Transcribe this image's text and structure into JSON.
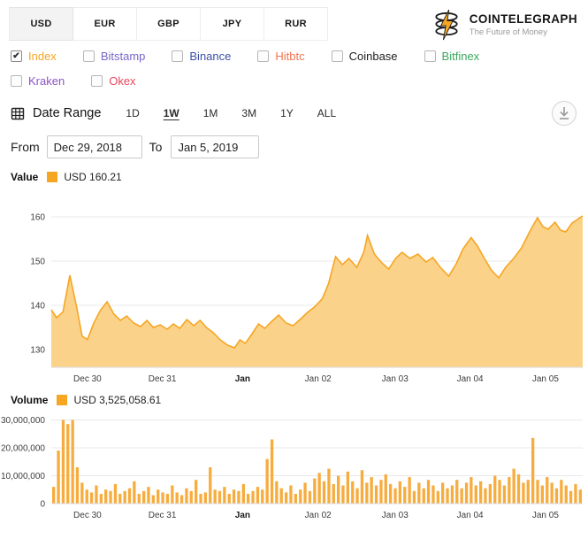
{
  "currency_tabs": [
    {
      "label": "USD",
      "active": true
    },
    {
      "label": "EUR",
      "active": false
    },
    {
      "label": "GBP",
      "active": false
    },
    {
      "label": "JPY",
      "active": false
    },
    {
      "label": "RUR",
      "active": false
    }
  ],
  "logo": {
    "title": "COINTELEGRAPH",
    "tagline": "The Future of Money"
  },
  "exchanges": {
    "rows": [
      [
        {
          "label": "Index",
          "checked": true,
          "color": "#f5a623"
        },
        {
          "label": "Bitstamp",
          "checked": false,
          "color": "#7a65c9"
        },
        {
          "label": "Binance",
          "checked": false,
          "color": "#3c4fa5"
        },
        {
          "label": "Hitbtc",
          "checked": false,
          "color": "#ee7551"
        },
        {
          "label": "Coinbase",
          "checked": false,
          "color": "#1e1e1e"
        },
        {
          "label": "Bitfinex",
          "checked": false,
          "color": "#3aa85e"
        }
      ],
      [
        {
          "label": "Kraken",
          "checked": false,
          "color": "#8e52c9"
        },
        {
          "label": "Okex",
          "checked": false,
          "color": "#e8485c"
        }
      ]
    ]
  },
  "date_range": {
    "label": "Date Range",
    "presets": [
      {
        "label": "1D",
        "active": false
      },
      {
        "label": "1W",
        "active": true
      },
      {
        "label": "1M",
        "active": false
      },
      {
        "label": "3M",
        "active": false
      },
      {
        "label": "1Y",
        "active": false
      },
      {
        "label": "ALL",
        "active": false
      }
    ],
    "from_label": "From",
    "from_value": "Dec 29, 2018",
    "to_label": "To",
    "to_value": "Jan 5, 2019"
  },
  "icons": {
    "header_logo": "cointelegraph-coin-bolt",
    "date_range": "calendar-icon",
    "download": "download-icon"
  },
  "chart_data": [
    {
      "type": "area",
      "name": "price-index",
      "legend_label": "Value",
      "legend_value": "USD 160.21",
      "swatch_color": "#f5a623",
      "line_color": "#f5a623",
      "fill_color": "#fbd28a",
      "ylim": [
        126,
        166
      ],
      "yticks": [
        {
          "v": 130,
          "label": "130"
        },
        {
          "v": 140,
          "label": "140"
        },
        {
          "v": 150,
          "label": "150"
        },
        {
          "v": 160,
          "label": "160"
        }
      ],
      "xticks": [
        {
          "t": 0.068,
          "label": "Dec 30",
          "bold": false
        },
        {
          "t": 0.209,
          "label": "Dec 31",
          "bold": false
        },
        {
          "t": 0.36,
          "label": "Jan",
          "bold": true
        },
        {
          "t": 0.502,
          "label": "Jan 02",
          "bold": false
        },
        {
          "t": 0.647,
          "label": "Jan 03",
          "bold": false
        },
        {
          "t": 0.788,
          "label": "Jan 04",
          "bold": false
        },
        {
          "t": 0.93,
          "label": "Jan 05",
          "bold": false
        }
      ],
      "points": [
        [
          0.0,
          139.0
        ],
        [
          0.01,
          137.2
        ],
        [
          0.022,
          138.5
        ],
        [
          0.035,
          146.8
        ],
        [
          0.048,
          139.5
        ],
        [
          0.058,
          133.0
        ],
        [
          0.068,
          132.3
        ],
        [
          0.08,
          136.0
        ],
        [
          0.092,
          138.8
        ],
        [
          0.105,
          140.8
        ],
        [
          0.118,
          138.0
        ],
        [
          0.13,
          136.6
        ],
        [
          0.142,
          137.6
        ],
        [
          0.155,
          136.0
        ],
        [
          0.168,
          135.2
        ],
        [
          0.18,
          136.6
        ],
        [
          0.192,
          135.0
        ],
        [
          0.205,
          135.6
        ],
        [
          0.218,
          134.6
        ],
        [
          0.23,
          135.8
        ],
        [
          0.242,
          134.8
        ],
        [
          0.255,
          136.8
        ],
        [
          0.268,
          135.4
        ],
        [
          0.28,
          136.6
        ],
        [
          0.292,
          135.0
        ],
        [
          0.305,
          133.8
        ],
        [
          0.318,
          132.2
        ],
        [
          0.332,
          131.0
        ],
        [
          0.345,
          130.4
        ],
        [
          0.355,
          132.2
        ],
        [
          0.365,
          131.4
        ],
        [
          0.378,
          133.6
        ],
        [
          0.39,
          135.8
        ],
        [
          0.402,
          134.8
        ],
        [
          0.415,
          136.4
        ],
        [
          0.428,
          137.8
        ],
        [
          0.442,
          136.0
        ],
        [
          0.455,
          135.4
        ],
        [
          0.468,
          136.8
        ],
        [
          0.482,
          138.4
        ],
        [
          0.495,
          139.6
        ],
        [
          0.51,
          141.5
        ],
        [
          0.522,
          145.0
        ],
        [
          0.535,
          151.0
        ],
        [
          0.548,
          149.2
        ],
        [
          0.56,
          150.6
        ],
        [
          0.575,
          148.6
        ],
        [
          0.588,
          152.0
        ],
        [
          0.595,
          155.8
        ],
        [
          0.608,
          151.6
        ],
        [
          0.622,
          149.6
        ],
        [
          0.635,
          148.2
        ],
        [
          0.648,
          150.6
        ],
        [
          0.66,
          152.0
        ],
        [
          0.675,
          150.6
        ],
        [
          0.69,
          151.6
        ],
        [
          0.705,
          149.8
        ],
        [
          0.718,
          150.8
        ],
        [
          0.732,
          148.6
        ],
        [
          0.748,
          146.6
        ],
        [
          0.762,
          149.4
        ],
        [
          0.775,
          152.8
        ],
        [
          0.79,
          155.3
        ],
        [
          0.802,
          153.4
        ],
        [
          0.815,
          150.6
        ],
        [
          0.828,
          148.0
        ],
        [
          0.842,
          146.2
        ],
        [
          0.855,
          148.6
        ],
        [
          0.87,
          150.6
        ],
        [
          0.885,
          153.0
        ],
        [
          0.9,
          156.6
        ],
        [
          0.915,
          159.8
        ],
        [
          0.925,
          157.8
        ],
        [
          0.935,
          157.2
        ],
        [
          0.948,
          158.8
        ],
        [
          0.958,
          157.0
        ],
        [
          0.968,
          156.6
        ],
        [
          0.98,
          158.6
        ],
        [
          0.99,
          159.4
        ],
        [
          1.0,
          160.21
        ]
      ]
    },
    {
      "type": "bar",
      "name": "volume",
      "legend_label": "Volume",
      "legend_value": "USD 3,525,058.61",
      "swatch_color": "#f5a623",
      "bar_color": "#f7ac3e",
      "unit": "USD",
      "value_scale": 1000000,
      "ylim": [
        0,
        33
      ],
      "yticks": [
        {
          "v": 0,
          "label": "0"
        },
        {
          "v": 10,
          "label": "10,000,000"
        },
        {
          "v": 20,
          "label": "20,000,000"
        },
        {
          "v": 30,
          "label": "30,000,000"
        }
      ],
      "xticks": [
        {
          "t": 0.068,
          "label": "Dec 30",
          "bold": false
        },
        {
          "t": 0.209,
          "label": "Dec 31",
          "bold": false
        },
        {
          "t": 0.36,
          "label": "Jan",
          "bold": true
        },
        {
          "t": 0.502,
          "label": "Jan 02",
          "bold": false
        },
        {
          "t": 0.647,
          "label": "Jan 03",
          "bold": false
        },
        {
          "t": 0.788,
          "label": "Jan 04",
          "bold": false
        },
        {
          "t": 0.93,
          "label": "Jan 05",
          "bold": false
        }
      ],
      "values": [
        6,
        19,
        30,
        28.5,
        30,
        13,
        7.5,
        5,
        4,
        6.5,
        3.5,
        5,
        4.5,
        7,
        3.5,
        4.5,
        5.5,
        8,
        3.5,
        4.5,
        6,
        3,
        5,
        4,
        3.5,
        6.5,
        4,
        3,
        5.5,
        4.5,
        8.5,
        3.5,
        4,
        13,
        5,
        4.5,
        6,
        3.5,
        5,
        4.5,
        7,
        3.5,
        4.5,
        6,
        5,
        16,
        23,
        8,
        5.5,
        4,
        6.5,
        3.5,
        5,
        7.5,
        4.5,
        9,
        11,
        8,
        12.5,
        7,
        10,
        6.5,
        11.5,
        8,
        5.5,
        12,
        7.5,
        9.5,
        6.5,
        8.5,
        10.5,
        7,
        5.5,
        8,
        6,
        9.5,
        4.5,
        7.5,
        5.5,
        8.5,
        6.5,
        4.5,
        7.5,
        5.5,
        6.5,
        8.5,
        5.5,
        7.5,
        9.5,
        6.5,
        8,
        5.5,
        7,
        10,
        8.5,
        6.5,
        9.5,
        12.5,
        10.5,
        7.5,
        8.5,
        23.5,
        8.5,
        6.5,
        9.5,
        7.5,
        5.5,
        8.5,
        6.5,
        4.5,
        7,
        5
      ]
    }
  ]
}
